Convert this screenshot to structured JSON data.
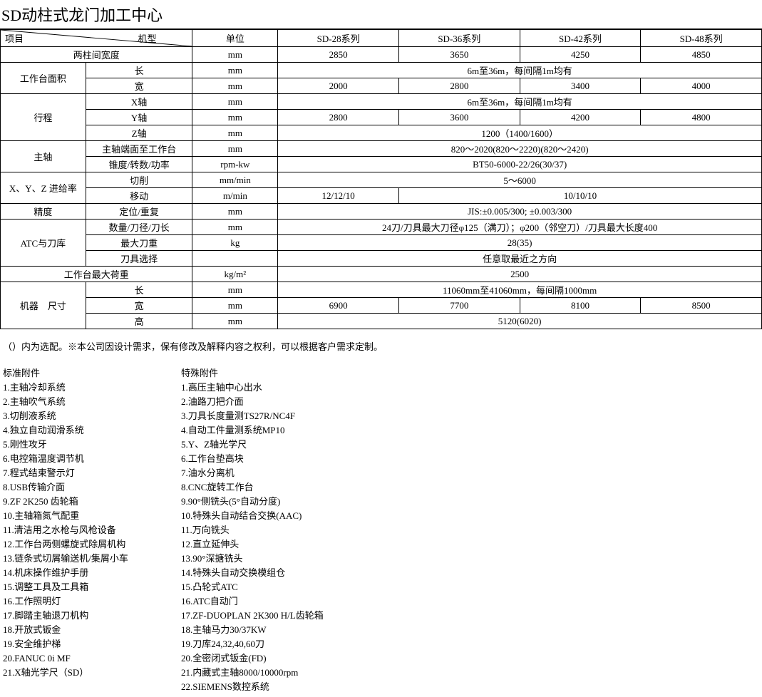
{
  "title": "SD动柱式龙门加工中心",
  "header": {
    "project_label": "项目",
    "model_label": "机型",
    "unit": "单位",
    "models": [
      "SD-28系列",
      "SD-36系列",
      "SD-42系列",
      "SD-48系列"
    ]
  },
  "rows": [
    {
      "cat": "两柱间宽度",
      "cat_span": 2,
      "unit": "mm",
      "vals": [
        "2850",
        "3650",
        "4250",
        "4850"
      ]
    },
    {
      "cat": "工作台面积",
      "cat_rowspan": 2,
      "sub": "长",
      "unit": "mm",
      "merged": "6m至36m，每间隔1m均有"
    },
    {
      "sub": "宽",
      "unit": "mm",
      "vals": [
        "2000",
        "2800",
        "3400",
        "4000"
      ]
    },
    {
      "cat": "行程",
      "cat_rowspan": 3,
      "sub": "X轴",
      "unit": "mm",
      "merged": "6m至36m，每间隔1m均有"
    },
    {
      "sub": "Y轴",
      "unit": "mm",
      "vals": [
        "2800",
        "3600",
        "4200",
        "4800"
      ]
    },
    {
      "sub": "Z轴",
      "unit": "mm",
      "merged": "1200（1400/1600）"
    },
    {
      "cat": "主轴",
      "cat_rowspan": 2,
      "sub": "主轴端面至工作台",
      "unit": "mm",
      "merged": "820～2020(820～2220)(820～2420)"
    },
    {
      "sub": "锥度/转数/功率",
      "unit": "rpm-kw",
      "merged": "BT50-6000-22/26(30/37)"
    },
    {
      "cat": "X、Y、Z 进给率",
      "cat_rowspan": 2,
      "sub": "切削",
      "unit": "mm/min",
      "merged": "5～6000"
    },
    {
      "sub": "移动",
      "unit": "m/min",
      "vals_partial": {
        "first": "12/12/10",
        "rest": "10/10/10"
      }
    },
    {
      "cat": "精度",
      "sub": "定位/重复",
      "unit": "mm",
      "merged": "JIS:±0.005/300; ±0.003/300"
    },
    {
      "cat": "ATC与刀库",
      "cat_rowspan": 3,
      "sub": "数量/刀径/刀长",
      "unit": "mm",
      "merged": "24刀/刀具最大刀径φ125（满刀）；φ200（邻空刀）/刀具最大长度400"
    },
    {
      "sub": "最大刀重",
      "unit": "kg",
      "merged": "28(35)"
    },
    {
      "sub": "刀具选择",
      "unit": "",
      "merged": "任意取最近之方向"
    },
    {
      "cat": "工作台最大荷重",
      "cat_span": 2,
      "unit": "kg/m²",
      "merged": "2500"
    },
    {
      "cat": "机器　尺寸",
      "cat_rowspan": 3,
      "sub": "长",
      "unit": "mm",
      "merged": "11060mm至41060mm，每间隔1000mm"
    },
    {
      "sub": "宽",
      "unit": "mm",
      "vals": [
        "6900",
        "7700",
        "8100",
        "8500"
      ]
    },
    {
      "sub": "高",
      "unit": "mm",
      "merged": "5120(6020)"
    }
  ],
  "note": "（）内为选配。※本公司因设计需求，保有修改及解释内容之权利，可以根据客户需求定制。",
  "standard_label": "标准附件",
  "special_label": "特殊附件",
  "standard": [
    "1.主轴冷却系统",
    "2.主轴吹气系统",
    "3.切削液系统",
    "4.独立自动润滑系统",
    "5.刚性攻牙",
    "6.电控箱温度调节机",
    "7.程式结束警示灯",
    "8.USB传输介面",
    "9.ZF 2K250 齿轮箱",
    "10.主轴箱氮气配重",
    "11.清洁用之水枪与风枪设备",
    "12.工作台两侧螺旋式除屑机构",
    "13.链条式切屑输送机/集屑小车",
    "14.机床操作维护手册",
    "15.调整工具及工具箱",
    "16.工作照明灯",
    "17.脚踏主轴退刀机构",
    "18.开放式钣金",
    "19.安全维护梯",
    "20.FANUC 0i MF",
    "21.X轴光学尺（SD）"
  ],
  "special": [
    "1.高压主轴中心出水",
    "2.油路刀把介面",
    "3.刀具长度量测TS27R/NC4F",
    "4.自动工件量测系统MP10",
    "5.Y、Z轴光学尺",
    "6.工作台垫高块",
    "7.油水分离机",
    "8.CNC旋转工作台",
    "9.90°侧铣头(5°自动分度)",
    "10.特殊头自动结合交换(AAC)",
    "11.万向铣头",
    "12.直立延伸头",
    "13.90°深搪铣头",
    "14.特殊头自动交换模组仓",
    "15.凸轮式ATC",
    "16.ATC自动门",
    "17.ZF-DUOPLAN 2K300 H/L齿轮箱",
    "18.主轴马力30/37KW",
    "19.刀库24,32,40,60刀",
    "20.全密闭式钣金(FD)",
    "21.内藏式主轴8000/10000rpm",
    "22.SIEMENS数控系统"
  ],
  "col_widths": {
    "cat": 120,
    "sub": 150,
    "unit": 120,
    "val": 170
  }
}
